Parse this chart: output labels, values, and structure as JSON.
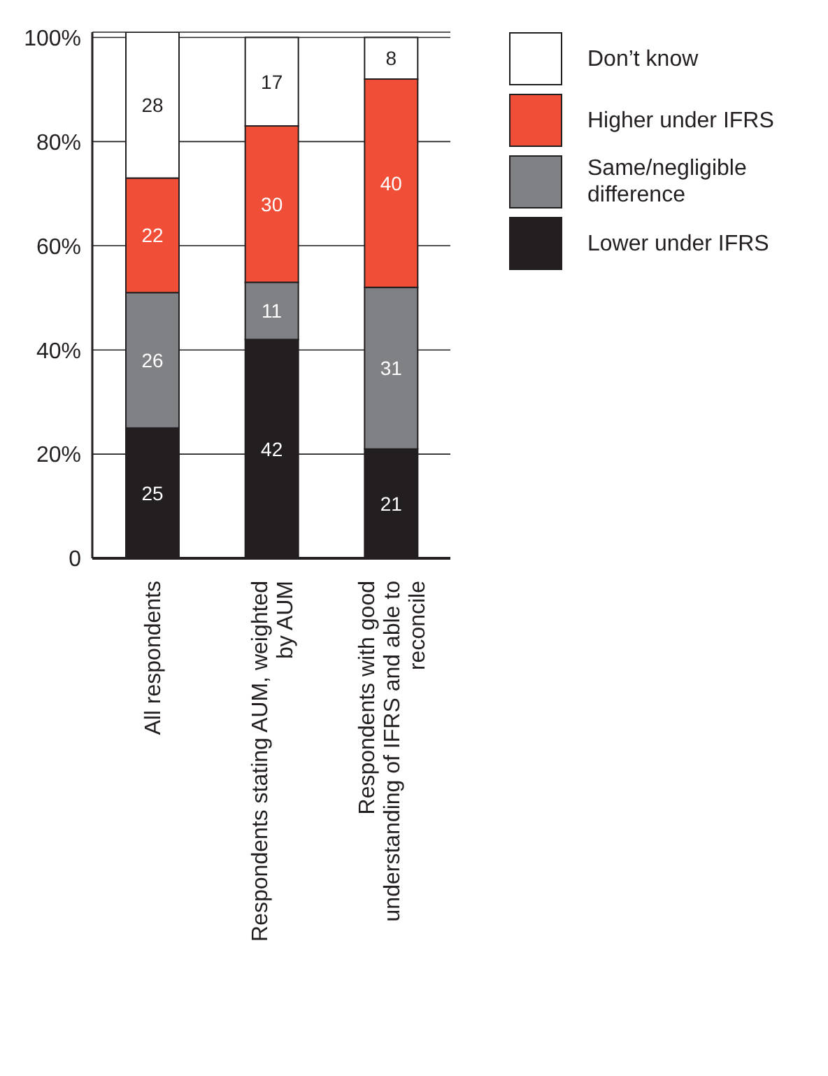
{
  "chart_data": {
    "type": "bar",
    "stacked": true,
    "categories": [
      "All respondents",
      "Respondents stating AUM, weighted by AUM",
      "Respondents with good understanding of IFRS and able to reconcile"
    ],
    "series": [
      {
        "name": "Lower under IFRS",
        "color": "#231f20",
        "values": [
          25,
          42,
          21
        ]
      },
      {
        "name": "Same/negligible difference",
        "color": "#808184",
        "values": [
          26,
          11,
          31
        ]
      },
      {
        "name": "Higher under IFRS",
        "color": "#f04e37",
        "values": [
          22,
          30,
          40
        ]
      },
      {
        "name": "Don’t know",
        "color": "#ffffff",
        "values": [
          28,
          17,
          8
        ]
      }
    ],
    "ylim": [
      0,
      101
    ],
    "yticks": [
      {
        "value": 0,
        "label": "0"
      },
      {
        "value": 20,
        "label": "20%"
      },
      {
        "value": 40,
        "label": "40%"
      },
      {
        "value": 60,
        "label": "60%"
      },
      {
        "value": 80,
        "label": "80%"
      },
      {
        "value": 100,
        "label": "100%"
      }
    ],
    "grid": "y",
    "legend": "top right",
    "data_labels": true
  }
}
